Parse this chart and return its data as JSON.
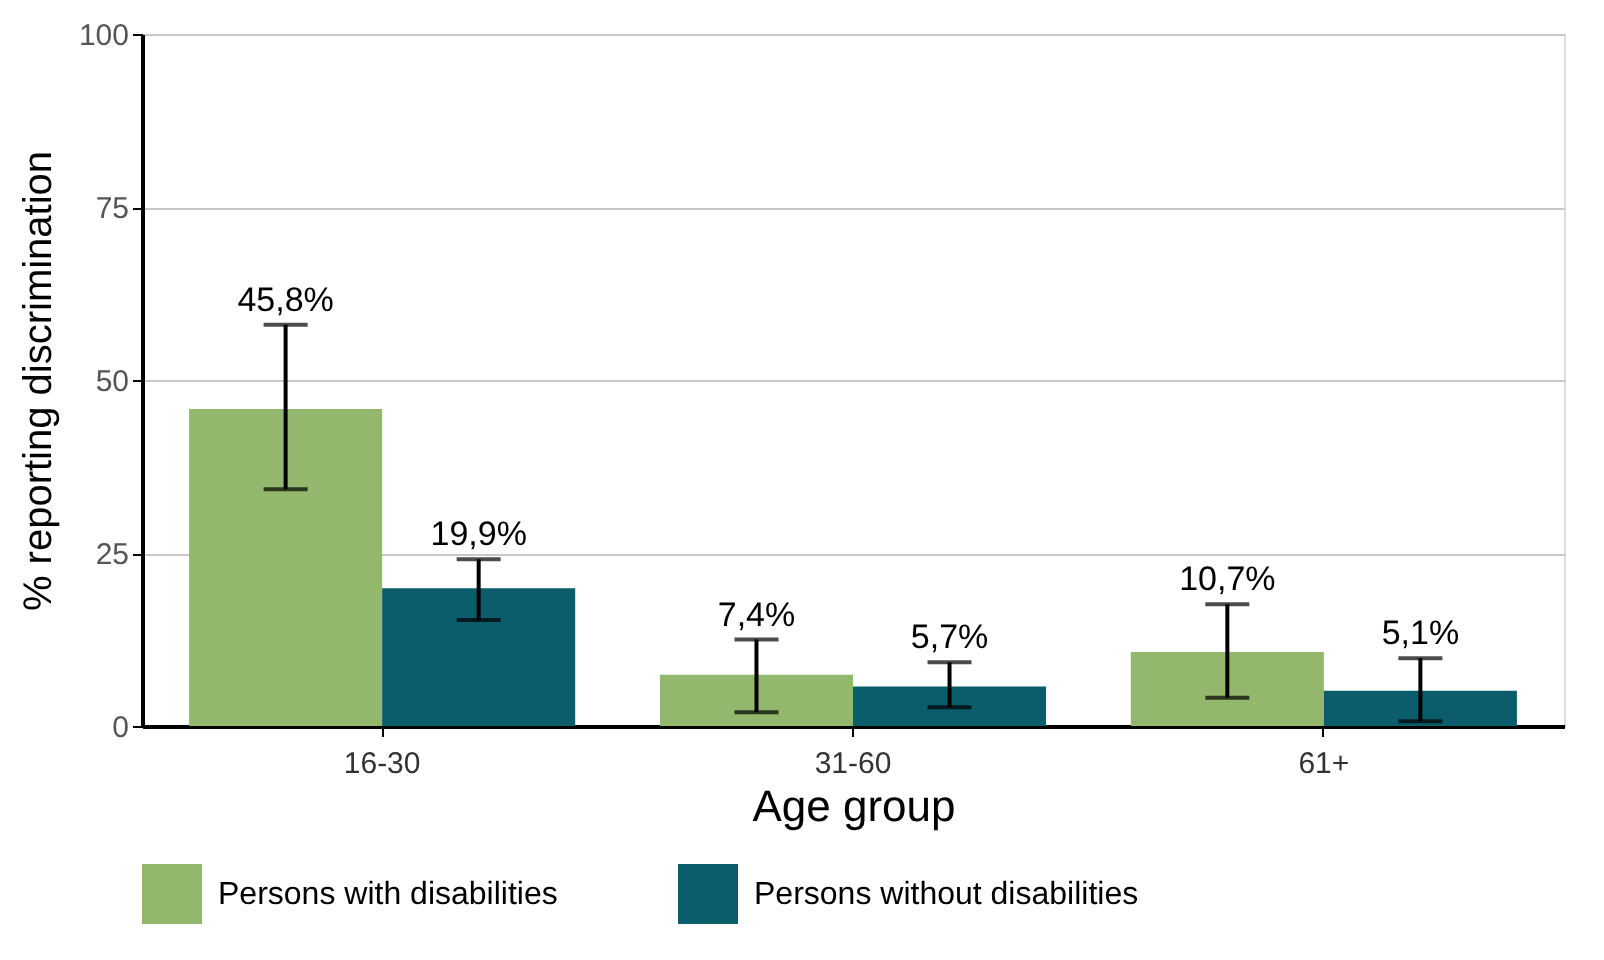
{
  "chart_data": {
    "type": "bar",
    "xlabel": "Age group",
    "ylabel": "% reporting discrimination",
    "categories": [
      "16-30",
      "31-60",
      "61+"
    ],
    "series": [
      {
        "name": "Persons with disabilities",
        "color": "#93b76d",
        "values": [
          45.8,
          7.4,
          10.7
        ],
        "errors": [
          [
            34.2,
            58.0
          ],
          [
            2.0,
            12.5
          ],
          [
            4.1,
            17.6
          ]
        ],
        "value_labels": [
          "45,8%",
          "7,4%",
          "10,7%"
        ]
      },
      {
        "name": "Persons without disabilities",
        "color": "#0b5d6b",
        "values": [
          19.9,
          5.7,
          5.1
        ],
        "errors": [
          [
            15.3,
            24.1
          ],
          [
            2.7,
            9.2
          ],
          [
            0.7,
            9.8
          ]
        ],
        "value_labels": [
          "19,9%",
          "5,7%",
          "5,1%"
        ]
      }
    ],
    "ylim": [
      0,
      100
    ],
    "yticks": [
      0,
      25,
      50,
      75,
      100
    ],
    "grid": "y",
    "legend": "bottom",
    "data_labels": true
  }
}
